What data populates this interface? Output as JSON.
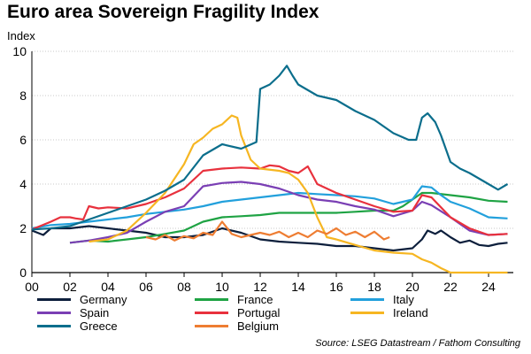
{
  "chart_data": {
    "type": "line",
    "title": "Euro area Sovereign Fragility Index",
    "ylabel": "Index",
    "xlabel": "",
    "ylim": [
      0,
      10
    ],
    "xlim": [
      2000,
      2025.3
    ],
    "yticks": [
      "0",
      "2",
      "4",
      "6",
      "8",
      "10"
    ],
    "xticks": [
      {
        "x": 2000,
        "label": "00"
      },
      {
        "x": 2002,
        "label": "02"
      },
      {
        "x": 2004,
        "label": "04"
      },
      {
        "x": 2006,
        "label": "06"
      },
      {
        "x": 2008,
        "label": "08"
      },
      {
        "x": 2010,
        "label": "10"
      },
      {
        "x": 2012,
        "label": "12"
      },
      {
        "x": 2014,
        "label": "14"
      },
      {
        "x": 2016,
        "label": "16"
      },
      {
        "x": 2018,
        "label": "18"
      },
      {
        "x": 2020,
        "label": "20"
      },
      {
        "x": 2022,
        "label": "22"
      },
      {
        "x": 2024,
        "label": "24"
      }
    ],
    "grid": "horizontal",
    "legend_position": "bottom",
    "source": "Source: LSEG Datastream / Fathom Consulting",
    "series": [
      {
        "name": "Germany",
        "color": "#0d1f3c",
        "points": [
          [
            2000.0,
            1.9
          ],
          [
            2000.3,
            1.8
          ],
          [
            2000.6,
            1.7
          ],
          [
            2001.0,
            2.0
          ],
          [
            2002.0,
            2.0
          ],
          [
            2003.0,
            2.1
          ],
          [
            2004.0,
            2.0
          ],
          [
            2005.0,
            1.9
          ],
          [
            2006.0,
            1.8
          ],
          [
            2007.0,
            1.6
          ],
          [
            2008.0,
            1.6
          ],
          [
            2009.0,
            1.7
          ],
          [
            2010.0,
            2.0
          ],
          [
            2011.0,
            1.8
          ],
          [
            2012.0,
            1.5
          ],
          [
            2013.0,
            1.4
          ],
          [
            2014.0,
            1.35
          ],
          [
            2015.0,
            1.3
          ],
          [
            2016.0,
            1.2
          ],
          [
            2017.0,
            1.2
          ],
          [
            2018.0,
            1.1
          ],
          [
            2019.0,
            1.0
          ],
          [
            2020.0,
            1.1
          ],
          [
            2020.5,
            1.5
          ],
          [
            2020.8,
            1.9
          ],
          [
            2021.2,
            1.75
          ],
          [
            2021.5,
            1.9
          ],
          [
            2022.0,
            1.6
          ],
          [
            2022.5,
            1.35
          ],
          [
            2023.0,
            1.45
          ],
          [
            2023.5,
            1.25
          ],
          [
            2024.0,
            1.2
          ],
          [
            2024.5,
            1.3
          ],
          [
            2025.0,
            1.35
          ]
        ]
      },
      {
        "name": "France",
        "color": "#1fa344",
        "points": [
          [
            2002.0,
            1.35
          ],
          [
            2003.0,
            1.45
          ],
          [
            2004.0,
            1.4
          ],
          [
            2005.0,
            1.5
          ],
          [
            2006.0,
            1.6
          ],
          [
            2007.0,
            1.75
          ],
          [
            2008.0,
            1.9
          ],
          [
            2009.0,
            2.3
          ],
          [
            2010.0,
            2.5
          ],
          [
            2011.0,
            2.55
          ],
          [
            2012.0,
            2.6
          ],
          [
            2013.0,
            2.7
          ],
          [
            2014.0,
            2.7
          ],
          [
            2015.0,
            2.7
          ],
          [
            2016.0,
            2.7
          ],
          [
            2017.0,
            2.75
          ],
          [
            2018.0,
            2.8
          ],
          [
            2019.0,
            2.8
          ],
          [
            2019.5,
            3.0
          ],
          [
            2020.0,
            3.3
          ],
          [
            2020.5,
            3.6
          ],
          [
            2021.0,
            3.6
          ],
          [
            2022.0,
            3.5
          ],
          [
            2023.0,
            3.4
          ],
          [
            2024.0,
            3.25
          ],
          [
            2025.0,
            3.2
          ]
        ]
      },
      {
        "name": "Italy",
        "color": "#22a0dc",
        "points": [
          [
            2000.0,
            2.0
          ],
          [
            2001.0,
            2.15
          ],
          [
            2002.0,
            2.2
          ],
          [
            2003.0,
            2.3
          ],
          [
            2004.0,
            2.4
          ],
          [
            2005.0,
            2.5
          ],
          [
            2006.0,
            2.65
          ],
          [
            2007.0,
            2.75
          ],
          [
            2008.0,
            2.85
          ],
          [
            2009.0,
            3.0
          ],
          [
            2010.0,
            3.2
          ],
          [
            2011.0,
            3.3
          ],
          [
            2012.0,
            3.4
          ],
          [
            2013.0,
            3.5
          ],
          [
            2014.0,
            3.6
          ],
          [
            2015.0,
            3.55
          ],
          [
            2016.0,
            3.5
          ],
          [
            2017.0,
            3.45
          ],
          [
            2018.0,
            3.35
          ],
          [
            2019.0,
            3.1
          ],
          [
            2020.0,
            3.3
          ],
          [
            2020.5,
            3.9
          ],
          [
            2021.0,
            3.85
          ],
          [
            2021.5,
            3.5
          ],
          [
            2022.0,
            3.2
          ],
          [
            2023.0,
            2.9
          ],
          [
            2024.0,
            2.5
          ],
          [
            2025.0,
            2.45
          ]
        ]
      },
      {
        "name": "Spain",
        "color": "#7a3fb4",
        "points": [
          [
            2002.0,
            1.35
          ],
          [
            2003.0,
            1.45
          ],
          [
            2004.0,
            1.6
          ],
          [
            2005.0,
            1.8
          ],
          [
            2006.0,
            2.3
          ],
          [
            2007.0,
            2.75
          ],
          [
            2008.0,
            3.0
          ],
          [
            2009.0,
            3.9
          ],
          [
            2010.0,
            4.05
          ],
          [
            2011.0,
            4.1
          ],
          [
            2012.0,
            4.0
          ],
          [
            2013.0,
            3.8
          ],
          [
            2014.0,
            3.5
          ],
          [
            2015.0,
            3.3
          ],
          [
            2016.0,
            3.2
          ],
          [
            2017.0,
            3.0
          ],
          [
            2018.0,
            2.85
          ],
          [
            2019.0,
            2.55
          ],
          [
            2020.0,
            2.8
          ],
          [
            2020.5,
            3.2
          ],
          [
            2021.0,
            3.05
          ],
          [
            2022.0,
            2.5
          ],
          [
            2023.0,
            1.9
          ],
          [
            2024.0,
            1.7
          ],
          [
            2025.0,
            1.75
          ]
        ]
      },
      {
        "name": "Portugal",
        "color": "#e8313d",
        "points": [
          [
            2000.0,
            1.95
          ],
          [
            2001.0,
            2.3
          ],
          [
            2001.5,
            2.5
          ],
          [
            2002.0,
            2.5
          ],
          [
            2002.3,
            2.45
          ],
          [
            2002.7,
            2.4
          ],
          [
            2003.0,
            3.0
          ],
          [
            2003.5,
            2.9
          ],
          [
            2004.0,
            2.95
          ],
          [
            2005.0,
            2.9
          ],
          [
            2006.0,
            3.1
          ],
          [
            2007.0,
            3.4
          ],
          [
            2008.0,
            3.8
          ],
          [
            2009.0,
            4.6
          ],
          [
            2010.0,
            4.7
          ],
          [
            2011.0,
            4.75
          ],
          [
            2012.0,
            4.7
          ],
          [
            2012.5,
            4.85
          ],
          [
            2013.0,
            4.8
          ],
          [
            2013.5,
            4.6
          ],
          [
            2014.0,
            4.5
          ],
          [
            2014.5,
            4.8
          ],
          [
            2015.0,
            4.0
          ],
          [
            2016.0,
            3.6
          ],
          [
            2017.0,
            3.3
          ],
          [
            2018.0,
            3.0
          ],
          [
            2019.0,
            2.75
          ],
          [
            2020.0,
            2.8
          ],
          [
            2020.5,
            3.5
          ],
          [
            2021.0,
            3.4
          ],
          [
            2022.0,
            2.5
          ],
          [
            2023.0,
            2.0
          ],
          [
            2024.0,
            1.7
          ],
          [
            2025.0,
            1.75
          ]
        ]
      },
      {
        "name": "Ireland",
        "color": "#f6b622",
        "points": [
          [
            2003.0,
            1.4
          ],
          [
            2004.0,
            1.5
          ],
          [
            2005.0,
            1.9
          ],
          [
            2006.0,
            2.7
          ],
          [
            2007.0,
            3.6
          ],
          [
            2008.0,
            4.9
          ],
          [
            2008.5,
            5.8
          ],
          [
            2009.0,
            6.1
          ],
          [
            2009.5,
            6.5
          ],
          [
            2010.0,
            6.7
          ],
          [
            2010.5,
            7.1
          ],
          [
            2010.8,
            7.0
          ],
          [
            2011.0,
            6.2
          ],
          [
            2011.5,
            5.1
          ],
          [
            2012.0,
            4.7
          ],
          [
            2013.0,
            4.6
          ],
          [
            2013.5,
            4.5
          ],
          [
            2014.0,
            4.2
          ],
          [
            2014.5,
            3.6
          ],
          [
            2015.0,
            2.5
          ],
          [
            2015.5,
            1.6
          ],
          [
            2016.0,
            1.5
          ],
          [
            2017.0,
            1.25
          ],
          [
            2018.0,
            1.0
          ],
          [
            2019.0,
            0.9
          ],
          [
            2020.0,
            0.85
          ],
          [
            2020.5,
            0.6
          ],
          [
            2021.0,
            0.45
          ],
          [
            2021.5,
            0.2
          ],
          [
            2022.0,
            0.0
          ],
          [
            2025.0,
            0.0
          ]
        ]
      },
      {
        "name": "Greece",
        "color": "#0b6e8c",
        "points": [
          [
            2000.0,
            1.95
          ],
          [
            2001.0,
            2.0
          ],
          [
            2002.0,
            2.1
          ],
          [
            2003.0,
            2.4
          ],
          [
            2004.0,
            2.7
          ],
          [
            2005.0,
            3.0
          ],
          [
            2006.0,
            3.3
          ],
          [
            2007.0,
            3.7
          ],
          [
            2008.0,
            4.2
          ],
          [
            2009.0,
            5.3
          ],
          [
            2010.0,
            5.8
          ],
          [
            2011.0,
            5.6
          ],
          [
            2011.8,
            5.9
          ],
          [
            2012.0,
            8.3
          ],
          [
            2012.5,
            8.5
          ],
          [
            2013.0,
            8.9
          ],
          [
            2013.4,
            9.35
          ],
          [
            2013.7,
            8.9
          ],
          [
            2014.0,
            8.5
          ],
          [
            2015.0,
            8.0
          ],
          [
            2016.0,
            7.8
          ],
          [
            2017.0,
            7.3
          ],
          [
            2018.0,
            6.9
          ],
          [
            2019.0,
            6.3
          ],
          [
            2019.8,
            6.0
          ],
          [
            2020.2,
            6.0
          ],
          [
            2020.5,
            7.0
          ],
          [
            2020.8,
            7.2
          ],
          [
            2021.2,
            6.8
          ],
          [
            2021.5,
            6.2
          ],
          [
            2022.0,
            5.0
          ],
          [
            2022.5,
            4.7
          ],
          [
            2023.0,
            4.5
          ],
          [
            2024.0,
            4.0
          ],
          [
            2024.5,
            3.75
          ],
          [
            2025.0,
            4.0
          ]
        ]
      },
      {
        "name": "Belgium",
        "color": "#ee7d32",
        "points": [
          [
            2006.0,
            1.6
          ],
          [
            2006.5,
            1.5
          ],
          [
            2007.0,
            1.7
          ],
          [
            2007.5,
            1.45
          ],
          [
            2008.0,
            1.65
          ],
          [
            2008.5,
            1.55
          ],
          [
            2009.0,
            1.8
          ],
          [
            2009.5,
            1.7
          ],
          [
            2010.0,
            2.3
          ],
          [
            2010.5,
            1.75
          ],
          [
            2011.0,
            1.6
          ],
          [
            2011.5,
            1.7
          ],
          [
            2012.0,
            1.8
          ],
          [
            2012.5,
            1.7
          ],
          [
            2013.0,
            1.85
          ],
          [
            2013.5,
            1.6
          ],
          [
            2014.0,
            1.8
          ],
          [
            2014.5,
            1.6
          ],
          [
            2015.0,
            1.9
          ],
          [
            2015.5,
            1.75
          ],
          [
            2016.0,
            2.0
          ],
          [
            2016.5,
            1.7
          ],
          [
            2017.0,
            1.85
          ],
          [
            2017.5,
            1.6
          ],
          [
            2018.0,
            1.85
          ],
          [
            2018.5,
            1.5
          ],
          [
            2018.8,
            1.6
          ]
        ]
      }
    ]
  }
}
